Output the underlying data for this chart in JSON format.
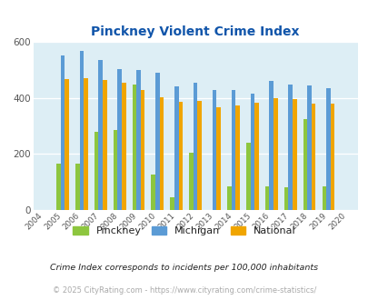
{
  "title": "Pinckney Violent Crime Index",
  "years": [
    2004,
    2005,
    2006,
    2007,
    2008,
    2009,
    2010,
    2011,
    2012,
    2013,
    2014,
    2015,
    2016,
    2017,
    2018,
    2019,
    2020
  ],
  "pinckney": [
    0,
    165,
    165,
    280,
    285,
    447,
    127,
    47,
    205,
    0,
    85,
    240,
    83,
    82,
    325,
    83,
    0
  ],
  "michigan": [
    0,
    552,
    568,
    537,
    503,
    500,
    490,
    442,
    453,
    428,
    428,
    414,
    460,
    449,
    444,
    435,
    0
  ],
  "national": [
    0,
    469,
    472,
    464,
    453,
    428,
    403,
    387,
    388,
    367,
    372,
    383,
    399,
    395,
    381,
    379,
    0
  ],
  "pinckney_color": "#8dc63f",
  "michigan_color": "#5b9bd5",
  "national_color": "#f0a500",
  "bg_color": "#ddeef5",
  "ylim": [
    0,
    600
  ],
  "yticks": [
    0,
    200,
    400,
    600
  ],
  "title_color": "#1155aa",
  "legend_labels": [
    "Pinckney",
    "Michigan",
    "National"
  ],
  "footnote1": "Crime Index corresponds to incidents per 100,000 inhabitants",
  "footnote2": "© 2025 CityRating.com - https://www.cityrating.com/crime-statistics/",
  "footnote1_color": "#222222",
  "footnote2_color": "#aaaaaa"
}
